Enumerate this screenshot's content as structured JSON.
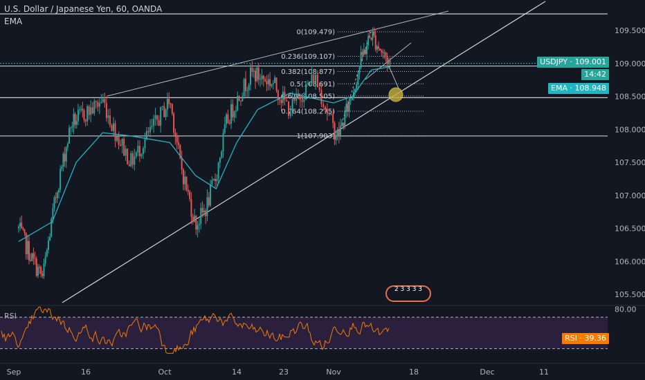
{
  "header": {
    "title": "U.S. Dollar / Japanese Yen, 60, OANDA",
    "indicator": "EMA"
  },
  "price_tags": {
    "symbol_price": "USDJPY · 109.001",
    "countdown": "14:42",
    "ema": "EMA · 108.948",
    "rsi": "RSI · 39.36"
  },
  "colors": {
    "background": "#131722",
    "candle_up": "#26a69a",
    "candle_down": "#ef5350",
    "ema_line": "#21b5c2",
    "rsi_line": "#f57c00",
    "rsi_band": "#2a1f3d",
    "level_line": "#e0e0e0",
    "target_circle": "#c5b13a"
  },
  "watermark_text": "2 3 3 3 3",
  "chart_data": [
    {
      "type": "candlestick",
      "title": "U.S. Dollar / Japanese Yen, 60, OANDA",
      "ylim": [
        105.35,
        109.75
      ],
      "y_ticks": [
        "109.500",
        "109.000",
        "108.500",
        "108.000",
        "107.500",
        "107.000",
        "106.500",
        "106.000",
        "105.500"
      ],
      "x_ticks": [
        "Sep",
        "16",
        "Oct",
        "14",
        "23",
        "Nov",
        "18",
        "Dec",
        "11"
      ],
      "horizontal_levels": [
        109.75,
        108.96,
        108.48,
        107.9
      ],
      "fibonacci": [
        {
          "label": "0(109.479)",
          "value": 109.479
        },
        {
          "label": "0.236(109.107)",
          "value": 109.107
        },
        {
          "label": "0.382(108.877)",
          "value": 108.877
        },
        {
          "label": "0.5(108.691)",
          "value": 108.691
        },
        {
          "label": "0.618(108.505)",
          "value": 108.505
        },
        {
          "label": "0.764(108.275)",
          "value": 108.275
        },
        {
          "label": "1(107.903)",
          "value": 107.903
        }
      ],
      "price_path": [
        {
          "x": "Sep 2",
          "y": 106.5
        },
        {
          "x": "Sep 5",
          "y": 106.0
        },
        {
          "x": "Sep 7",
          "y": 105.75
        },
        {
          "x": "Sep 10",
          "y": 107.1
        },
        {
          "x": "Sep 13",
          "y": 108.1
        },
        {
          "x": "Sep 17",
          "y": 108.3
        },
        {
          "x": "Sep 19",
          "y": 108.45
        },
        {
          "x": "Sep 21",
          "y": 108.0
        },
        {
          "x": "Sep 24",
          "y": 107.5
        },
        {
          "x": "Sep 27",
          "y": 107.9
        },
        {
          "x": "Oct 1",
          "y": 108.45
        },
        {
          "x": "Oct 3",
          "y": 107.5
        },
        {
          "x": "Oct 6",
          "y": 106.55
        },
        {
          "x": "Oct 8",
          "y": 106.8
        },
        {
          "x": "Oct 10",
          "y": 107.3
        },
        {
          "x": "Oct 12",
          "y": 108.1
        },
        {
          "x": "Oct 15",
          "y": 108.6
        },
        {
          "x": "Oct 17",
          "y": 108.85
        },
        {
          "x": "Oct 21",
          "y": 108.7
        },
        {
          "x": "Oct 24",
          "y": 108.3
        },
        {
          "x": "Oct 28",
          "y": 108.8
        },
        {
          "x": "Oct 31",
          "y": 108.0
        },
        {
          "x": "Nov 1",
          "y": 107.9
        },
        {
          "x": "Nov 4",
          "y": 108.55
        },
        {
          "x": "Nov 6",
          "y": 109.1
        },
        {
          "x": "Nov 8",
          "y": 109.45
        },
        {
          "x": "Nov 10",
          "y": 109.2
        },
        {
          "x": "Nov 12",
          "y": 109.0
        }
      ],
      "ema_path": [
        {
          "x": "Sep 2",
          "y": 106.3
        },
        {
          "x": "Sep 9",
          "y": 106.6
        },
        {
          "x": "Sep 14",
          "y": 107.5
        },
        {
          "x": "Sep 19",
          "y": 107.95
        },
        {
          "x": "Sep 24",
          "y": 107.9
        },
        {
          "x": "Oct 1",
          "y": 107.8
        },
        {
          "x": "Oct 6",
          "y": 107.3
        },
        {
          "x": "Oct 10",
          "y": 107.1
        },
        {
          "x": "Oct 14",
          "y": 107.8
        },
        {
          "x": "Oct 18",
          "y": 108.3
        },
        {
          "x": "Oct 24",
          "y": 108.55
        },
        {
          "x": "Oct 31",
          "y": 108.4
        },
        {
          "x": "Nov 4",
          "y": 108.5
        },
        {
          "x": "Nov 8",
          "y": 108.9
        },
        {
          "x": "Nov 12",
          "y": 108.95
        }
      ],
      "last_price": 109.001,
      "ema_value": 108.948
    },
    {
      "type": "line",
      "title": "RSI",
      "ylim": [
        20,
        85
      ],
      "y_ticks": [
        "80.00"
      ],
      "band": [
        70,
        30
      ],
      "last_value": 39.36
    }
  ]
}
